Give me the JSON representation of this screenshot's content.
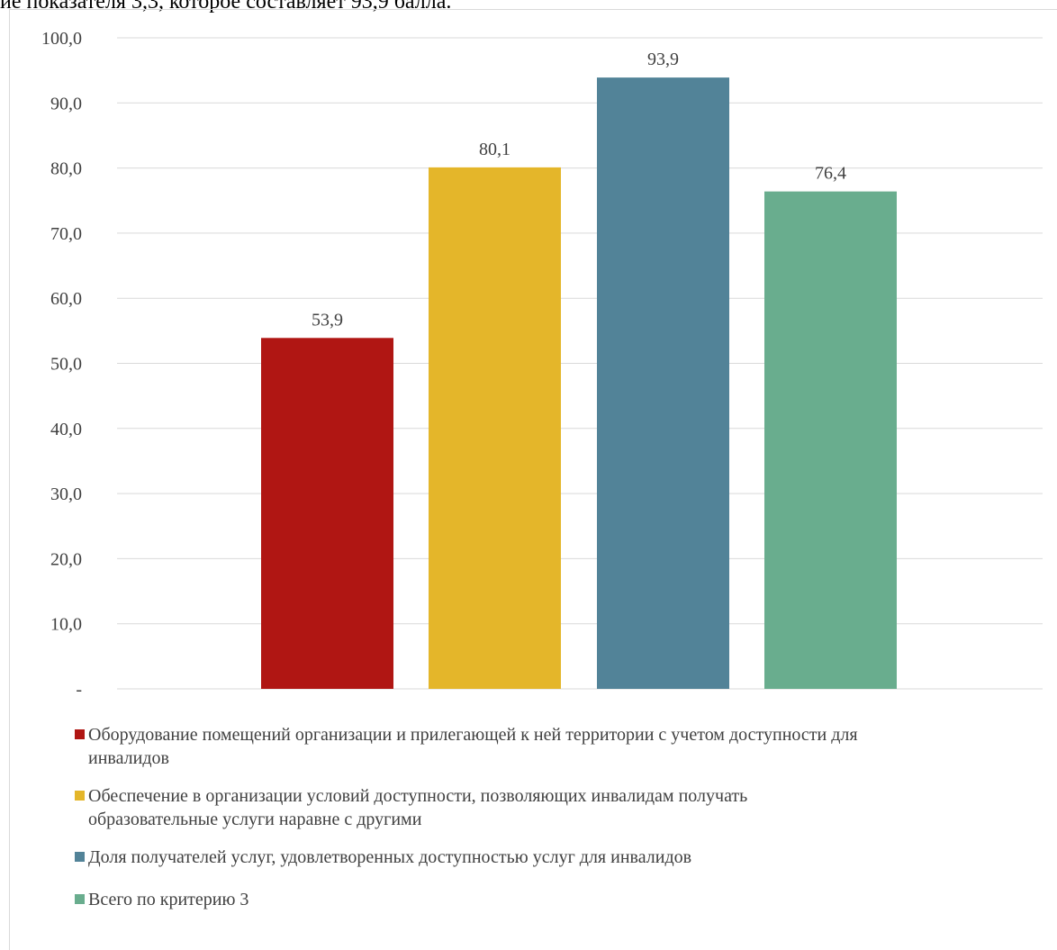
{
  "page": {
    "header_text": "ие показателя 3,3, которое составляет 93,9 балла."
  },
  "chart_data": {
    "type": "bar",
    "categories": [
      "Оборудование помещений организации и прилегающей к ней территории с учетом доступности для инвалидов",
      "Обеспечение в организации условий доступности, позволяющих инвалидам получать образовательные услуги наравне с другими",
      "Доля получателей услуг, удовлетворенных доступностью услуг для инвалидов",
      "Всего по критерию 3"
    ],
    "values": [
      53.9,
      80.1,
      93.9,
      76.4
    ],
    "data_labels": [
      "53,9",
      "80,1",
      "93,9",
      "76,4"
    ],
    "colors": [
      "#b01613",
      "#e4b62a",
      "#528398",
      "#69ad8e"
    ],
    "ylim": [
      0,
      100
    ],
    "yticks": [
      {
        "value": 100,
        "label": "100,0"
      },
      {
        "value": 90,
        "label": "90,0"
      },
      {
        "value": 80,
        "label": "80,0"
      },
      {
        "value": 70,
        "label": "70,0"
      },
      {
        "value": 60,
        "label": "60,0"
      },
      {
        "value": 50,
        "label": "50,0"
      },
      {
        "value": 40,
        "label": "40,0"
      },
      {
        "value": 30,
        "label": "30,0"
      },
      {
        "value": 20,
        "label": "20,0"
      },
      {
        "value": 10,
        "label": "10,0"
      },
      {
        "value": 0,
        "label": "-"
      }
    ],
    "legend": [
      {
        "line1": "Оборудование помещений организации и прилегающей к ней территории с учетом доступности для",
        "line2": "инвалидов"
      },
      {
        "line1": "Обеспечение в организации условий доступности, позволяющих инвалидам получать",
        "line2": "образовательные услуги наравне с другими"
      },
      {
        "line1": "Доля получателей услуг, удовлетворенных доступностью услуг для инвалидов",
        "line2": ""
      },
      {
        "line1": "Всего по критерию 3",
        "line2": ""
      }
    ],
    "grid": true,
    "legend_position": "bottom"
  }
}
